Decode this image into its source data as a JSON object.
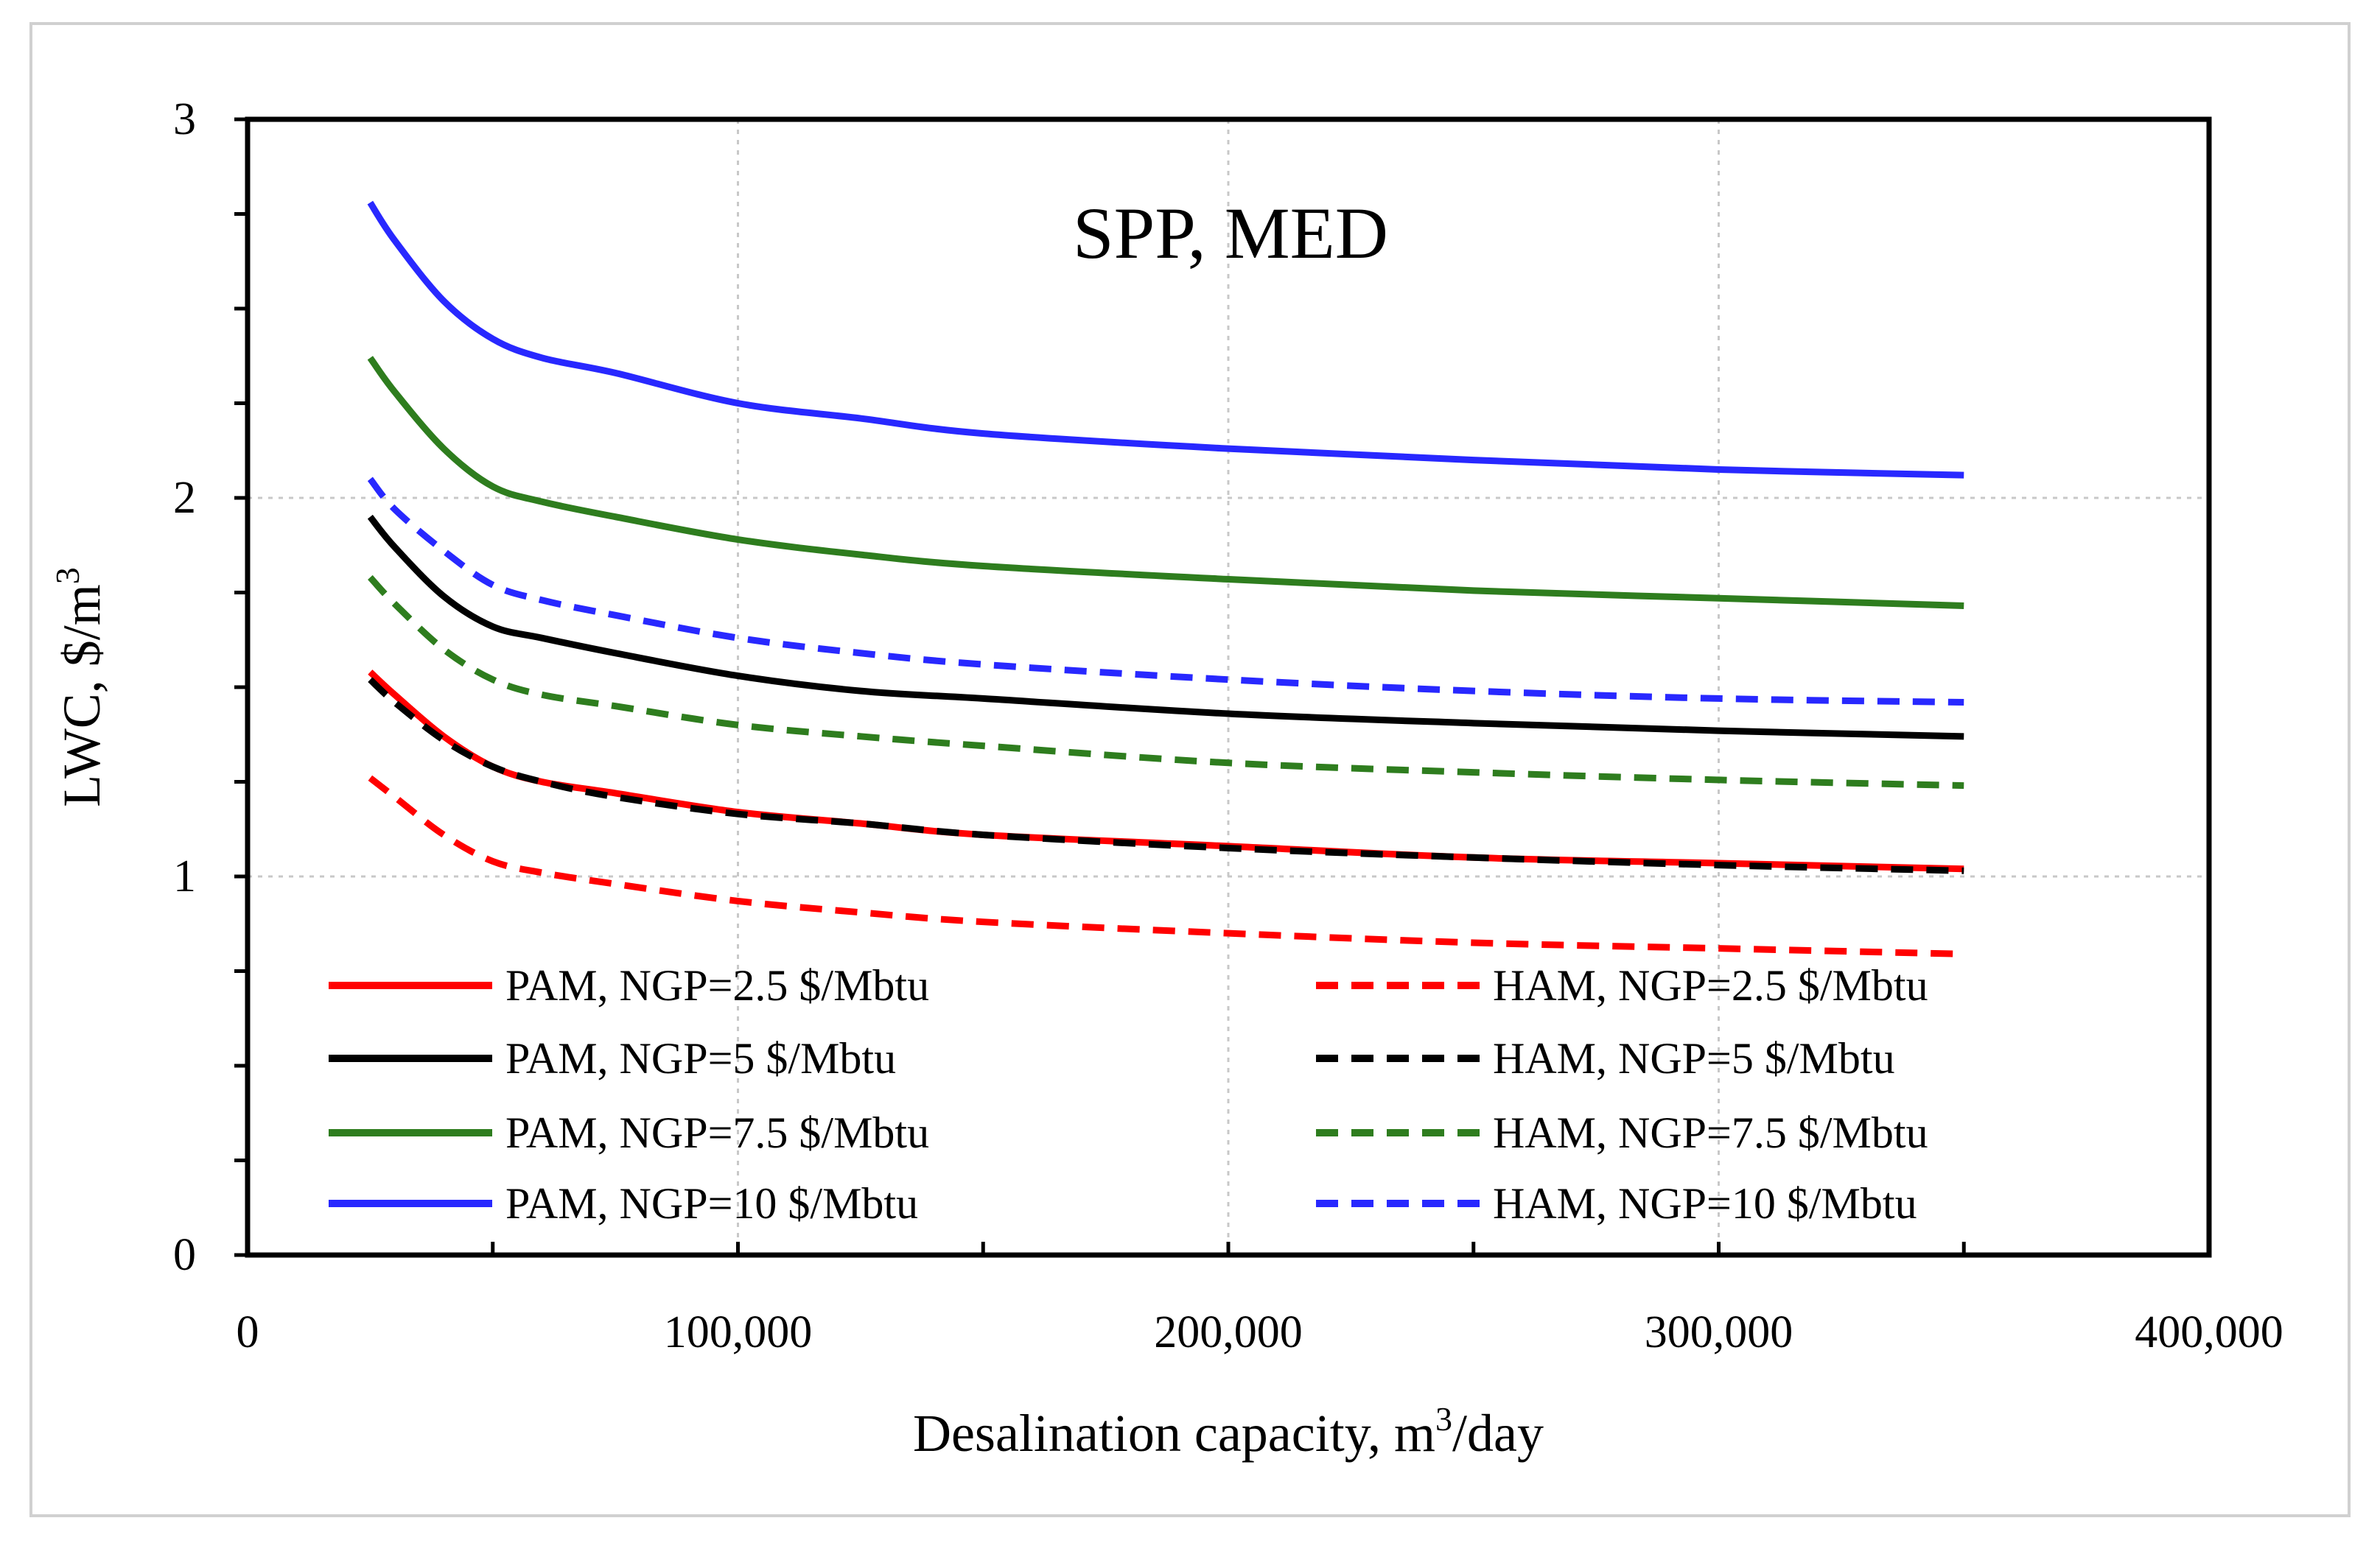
{
  "chart_data": {
    "type": "line",
    "title": "SPP, MED",
    "xlabel": "Desalination capacity, m",
    "xlabel_sup": "3",
    "xlabel_suffix": "/day",
    "ylabel": "LWC, $/m",
    "ylabel_sup": "3",
    "xlim": [
      0,
      400000
    ],
    "ylim": [
      0,
      3
    ],
    "x_ticks": [
      0,
      100000,
      200000,
      300000,
      400000
    ],
    "x_tick_labels": [
      "0",
      "100,000",
      "200,000",
      "300,000",
      "400,000"
    ],
    "y_ticks": [
      0,
      1,
      2,
      3
    ],
    "y_tick_labels": [
      "0",
      "1",
      "2",
      "3"
    ],
    "grid": true,
    "legend_position": "bottom",
    "x": [
      25000,
      30000,
      40000,
      50000,
      60000,
      75000,
      100000,
      125000,
      150000,
      200000,
      250000,
      300000,
      350000
    ],
    "series": [
      {
        "name": "PAM, NGP=2.5 $/Mbtu",
        "color": "#ff0000",
        "dashed": false,
        "values": [
          1.54,
          1.48,
          1.37,
          1.29,
          1.25,
          1.22,
          1.17,
          1.14,
          1.11,
          1.08,
          1.05,
          1.035,
          1.02
        ]
      },
      {
        "name": "HAM, NGP=2.5 $/Mbtu",
        "color": "#ff0000",
        "dashed": true,
        "values": [
          1.26,
          1.21,
          1.11,
          1.04,
          1.01,
          0.98,
          0.935,
          0.905,
          0.88,
          0.85,
          0.825,
          0.81,
          0.795
        ]
      },
      {
        "name": "PAM, NGP=5 $/Mbtu",
        "color": "#000000",
        "dashed": false,
        "values": [
          1.95,
          1.87,
          1.74,
          1.66,
          1.63,
          1.59,
          1.53,
          1.49,
          1.47,
          1.43,
          1.405,
          1.385,
          1.37
        ]
      },
      {
        "name": "HAM, NGP=5 $/Mbtu",
        "color": "#000000",
        "dashed": true,
        "values": [
          1.52,
          1.46,
          1.36,
          1.29,
          1.25,
          1.21,
          1.165,
          1.14,
          1.11,
          1.075,
          1.05,
          1.03,
          1.015
        ]
      },
      {
        "name": "PAM, NGP=7.5 $/Mbtu",
        "color": "#2e7d1e",
        "dashed": false,
        "values": [
          2.37,
          2.28,
          2.13,
          2.03,
          1.99,
          1.95,
          1.89,
          1.85,
          1.82,
          1.785,
          1.755,
          1.735,
          1.715
        ]
      },
      {
        "name": "HAM, NGP=7.5 $/Mbtu",
        "color": "#2e7d1e",
        "dashed": true,
        "values": [
          1.79,
          1.72,
          1.6,
          1.52,
          1.48,
          1.45,
          1.4,
          1.37,
          1.345,
          1.3,
          1.275,
          1.255,
          1.24
        ]
      },
      {
        "name": "PAM, NGP=10 $/Mbtu",
        "color": "#2828ff",
        "dashed": false,
        "values": [
          2.78,
          2.68,
          2.52,
          2.42,
          2.37,
          2.33,
          2.25,
          2.21,
          2.17,
          2.13,
          2.1,
          2.075,
          2.06
        ]
      },
      {
        "name": "HAM, NGP=10 $/Mbtu",
        "color": "#2828ff",
        "dashed": true,
        "values": [
          2.05,
          1.97,
          1.86,
          1.77,
          1.73,
          1.69,
          1.63,
          1.59,
          1.56,
          1.52,
          1.49,
          1.47,
          1.46
        ]
      }
    ]
  }
}
